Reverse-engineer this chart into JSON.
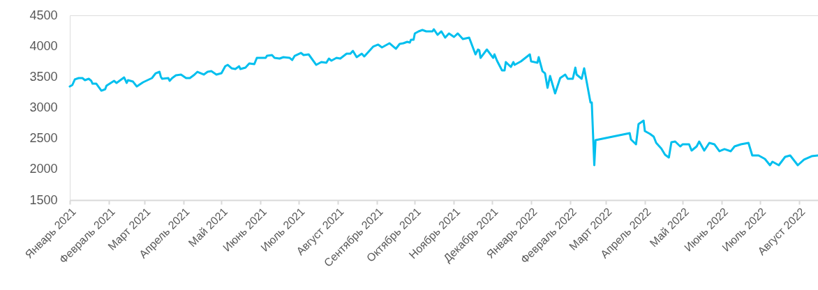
{
  "chart_data": {
    "type": "line",
    "x": [
      "2021-01-01",
      "2021-01-03",
      "2021-01-05",
      "2021-01-08",
      "2021-01-11",
      "2021-01-13",
      "2021-01-16",
      "2021-01-18",
      "2021-01-19",
      "2021-01-22",
      "2021-01-26",
      "2021-01-29",
      "2021-01-30",
      "2021-02-05",
      "2021-02-07",
      "2021-02-13",
      "2021-02-15",
      "2021-02-16",
      "2021-02-20",
      "2021-02-23",
      "2021-02-28",
      "2021-03-07",
      "2021-03-10",
      "2021-03-13",
      "2021-03-14",
      "2021-03-15",
      "2021-03-20",
      "2021-03-21",
      "2021-03-23",
      "2021-03-26",
      "2021-03-30",
      "2021-04-03",
      "2021-04-06",
      "2021-04-09",
      "2021-04-12",
      "2021-04-17",
      "2021-04-20",
      "2021-04-23",
      "2021-04-27",
      "2021-05-01",
      "2021-05-04",
      "2021-05-06",
      "2021-05-09",
      "2021-05-12",
      "2021-05-15",
      "2021-05-16",
      "2021-05-20",
      "2021-05-23",
      "2021-05-27",
      "2021-05-29",
      "2021-06-05",
      "2021-06-06",
      "2021-06-10",
      "2021-06-12",
      "2021-06-16",
      "2021-06-19",
      "2021-06-24",
      "2021-06-26",
      "2021-06-28",
      "2021-07-03",
      "2021-07-05",
      "2021-07-09",
      "2021-07-15",
      "2021-07-19",
      "2021-07-23",
      "2021-07-25",
      "2021-07-27",
      "2021-07-31",
      "2021-08-03",
      "2021-08-08",
      "2021-08-11",
      "2021-08-13",
      "2021-08-16",
      "2021-08-20",
      "2021-08-22",
      "2021-08-26",
      "2021-08-29",
      "2021-09-02",
      "2021-09-05",
      "2021-09-11",
      "2021-09-16",
      "2021-09-19",
      "2021-09-22",
      "2021-09-25",
      "2021-09-27",
      "2021-09-28",
      "2021-09-30",
      "2021-10-01",
      "2021-10-04",
      "2021-10-07",
      "2021-10-10",
      "2021-10-15",
      "2021-10-16",
      "2021-10-19",
      "2021-10-22",
      "2021-10-25",
      "2021-10-28",
      "2021-11-01",
      "2021-11-04",
      "2021-11-08",
      "2021-11-13",
      "2021-11-18",
      "2021-11-20",
      "2021-11-21",
      "2021-11-22",
      "2021-11-27",
      "2021-12-02",
      "2021-12-03",
      "2021-12-05",
      "2021-12-09",
      "2021-12-11",
      "2021-12-12",
      "2021-12-16",
      "2021-12-18",
      "2021-12-19",
      "2021-12-24",
      "2021-12-31",
      "2022-01-01",
      "2022-01-06",
      "2022-01-07",
      "2022-01-10",
      "2022-01-12",
      "2022-01-14",
      "2022-01-16",
      "2022-01-20",
      "2022-01-24",
      "2022-01-28",
      "2022-01-30",
      "2022-02-03",
      "2022-02-05",
      "2022-02-06",
      "2022-02-10",
      "2022-02-12",
      "2022-02-17",
      "2022-02-18",
      "2022-02-20",
      "2022-02-21",
      "2022-03-20",
      "2022-03-21",
      "2022-03-25",
      "2022-03-27",
      "2022-03-31",
      "2022-04-01",
      "2022-04-05",
      "2022-04-08",
      "2022-04-10",
      "2022-04-14",
      "2022-04-17",
      "2022-04-20",
      "2022-04-22",
      "2022-04-25",
      "2022-04-29",
      "2022-05-01",
      "2022-05-06",
      "2022-05-08",
      "2022-05-12",
      "2022-05-14",
      "2022-05-18",
      "2022-05-22",
      "2022-05-26",
      "2022-05-30",
      "2022-06-03",
      "2022-06-08",
      "2022-06-11",
      "2022-06-16",
      "2022-06-19",
      "2022-06-22",
      "2022-06-25",
      "2022-06-30",
      "2022-07-05",
      "2022-07-09",
      "2022-07-11",
      "2022-07-16",
      "2022-07-21",
      "2022-07-25",
      "2022-07-31",
      "2022-08-05",
      "2022-08-11",
      "2022-08-16"
    ],
    "series": [
      {
        "color": "#00bfee",
        "values": [
          3345,
          3368,
          3459,
          3481,
          3481,
          3447,
          3470,
          3436,
          3390,
          3390,
          3277,
          3300,
          3357,
          3436,
          3402,
          3492,
          3402,
          3447,
          3424,
          3345,
          3413,
          3481,
          3560,
          3583,
          3504,
          3470,
          3481,
          3436,
          3481,
          3526,
          3538,
          3481,
          3481,
          3526,
          3583,
          3538,
          3583,
          3594,
          3538,
          3560,
          3673,
          3696,
          3640,
          3628,
          3673,
          3628,
          3651,
          3719,
          3708,
          3809,
          3809,
          3843,
          3855,
          3809,
          3798,
          3821,
          3809,
          3775,
          3843,
          3889,
          3855,
          3866,
          3696,
          3741,
          3730,
          3798,
          3764,
          3809,
          3798,
          3877,
          3877,
          3923,
          3821,
          3877,
          3832,
          3923,
          3991,
          4025,
          3979,
          4047,
          3957,
          4036,
          4047,
          4070,
          4058,
          4104,
          4104,
          4206,
          4240,
          4262,
          4240,
          4240,
          4274,
          4183,
          4240,
          4138,
          4206,
          4149,
          4206,
          4115,
          4138,
          3866,
          3945,
          3934,
          3809,
          3945,
          3809,
          3866,
          3764,
          3606,
          3606,
          3741,
          3662,
          3741,
          3696,
          3753,
          3866,
          3753,
          3730,
          3821,
          3594,
          3560,
          3323,
          3515,
          3232,
          3481,
          3538,
          3470,
          3470,
          3651,
          3538,
          3470,
          3640,
          3085,
          3085,
          2066,
          2474,
          2587,
          2485,
          2406,
          2734,
          2791,
          2621,
          2576,
          2530,
          2428,
          2338,
          2236,
          2191,
          2440,
          2451,
          2372,
          2406,
          2406,
          2304,
          2372,
          2451,
          2304,
          2428,
          2406,
          2293,
          2327,
          2293,
          2372,
          2406,
          2417,
          2428,
          2225,
          2225,
          2168,
          2066,
          2123,
          2066,
          2202,
          2225,
          2066,
          2157,
          2213,
          2225
        ]
      }
    ],
    "xlim": [
      "2021-01-01",
      "2022-08-16"
    ],
    "xticks": [
      {
        "value": "2021-01-01",
        "label": "Январь 2021"
      },
      {
        "value": "2021-02-01",
        "label": "Февраль 2021"
      },
      {
        "value": "2021-03-01",
        "label": "Март 2021"
      },
      {
        "value": "2021-04-01",
        "label": "Апрель 2021"
      },
      {
        "value": "2021-05-01",
        "label": "Май 2021"
      },
      {
        "value": "2021-06-01",
        "label": "Июнь 2021"
      },
      {
        "value": "2021-07-01",
        "label": "Июль 2021"
      },
      {
        "value": "2021-08-01",
        "label": "Август 2021"
      },
      {
        "value": "2021-09-01",
        "label": "Сентябрь 2021"
      },
      {
        "value": "2021-10-01",
        "label": "Октябрь 2021"
      },
      {
        "value": "2021-11-01",
        "label": "Ноябрь 2021"
      },
      {
        "value": "2021-12-01",
        "label": "Декабрь 2021"
      },
      {
        "value": "2022-01-01",
        "label": "Январь 2022"
      },
      {
        "value": "2022-02-01",
        "label": "Февраль 2022"
      },
      {
        "value": "2022-03-01",
        "label": "Март 2022"
      },
      {
        "value": "2022-04-01",
        "label": "Апрель 2022"
      },
      {
        "value": "2022-05-01",
        "label": "Май 2022"
      },
      {
        "value": "2022-06-01",
        "label": "Июнь 2022"
      },
      {
        "value": "2022-07-01",
        "label": "Июль 2022"
      },
      {
        "value": "2022-08-01",
        "label": "Август 2022"
      }
    ],
    "ylim": [
      1500,
      4500
    ],
    "yticks": [
      1500,
      2000,
      2500,
      3000,
      3500,
      4000,
      4500
    ],
    "grid": false,
    "line_style": "solid"
  }
}
